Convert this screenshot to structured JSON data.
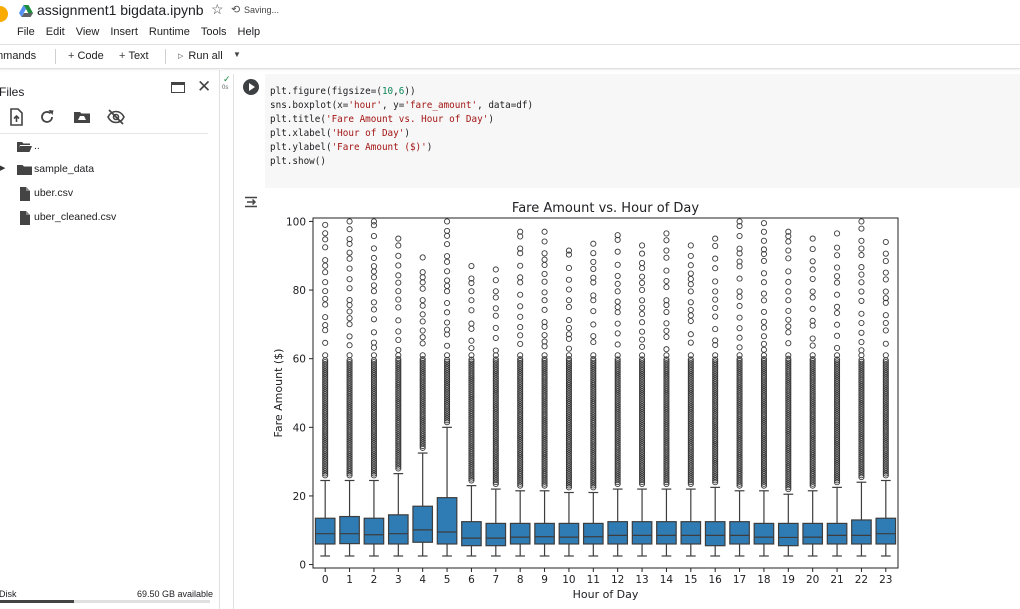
{
  "header": {
    "notebook_title": "assignment1 bigdata.ipynb",
    "saving_text": "Saving...",
    "star_icon": "star-icon",
    "menu": [
      "File",
      "Edit",
      "View",
      "Insert",
      "Runtime",
      "Tools",
      "Help"
    ]
  },
  "toolbar": {
    "commands_label": "mmands",
    "code_label": "Code",
    "text_label": "Text",
    "run_all_label": "Run all"
  },
  "files_panel": {
    "title": "Files",
    "tools": [
      "upload-icon",
      "refresh-icon",
      "mount-drive-icon",
      "hide-icon"
    ],
    "items": [
      {
        "label": "..",
        "kind": "parent-folder"
      },
      {
        "label": "sample_data",
        "kind": "folder"
      },
      {
        "label": "uber.csv",
        "kind": "file"
      },
      {
        "label": "uber_cleaned.csv",
        "kind": "file"
      }
    ],
    "disk_label": "Disk",
    "disk_available": "69.50 GB available",
    "disk_used_fraction": 0.35
  },
  "cell": {
    "status_check": "✓",
    "exec_time": "0s",
    "code": [
      "plt.figure(figsize=(10,6))",
      "sns.boxplot(x='hour', y='fare_amount', data=df)",
      "plt.title('Fare Amount vs. Hour of Day')",
      "plt.xlabel('Hour of Day')",
      "plt.ylabel('Fare Amount ($)')",
      "plt.show()"
    ]
  },
  "colors": {
    "box_fill": "#2f7bb4",
    "code_bg": "#f7f7f7",
    "string_color": "#a31515",
    "number_color": "#098658"
  },
  "chart_data": {
    "type": "boxplot",
    "title": "Fare Amount vs. Hour of Day",
    "xlabel": "Hour of Day",
    "ylabel": "Fare Amount ($)",
    "ylim": [
      -1,
      101
    ],
    "yticks": [
      0,
      20,
      40,
      60,
      80,
      100
    ],
    "categories": [
      "0",
      "1",
      "2",
      "3",
      "4",
      "5",
      "6",
      "7",
      "8",
      "9",
      "10",
      "11",
      "12",
      "13",
      "14",
      "15",
      "16",
      "17",
      "18",
      "19",
      "20",
      "21",
      "22",
      "23"
    ],
    "q1": [
      6.0,
      6.1,
      6.0,
      6.0,
      6.5,
      6.0,
      5.5,
      5.5,
      6.0,
      6.0,
      6.0,
      6.0,
      6.0,
      6.0,
      6.0,
      6.0,
      5.5,
      6.0,
      6.0,
      5.5,
      6.0,
      6.0,
      6.0,
      6.0
    ],
    "median": [
      9.0,
      9.0,
      8.7,
      9.0,
      10.1,
      9.5,
      7.7,
      7.7,
      8.0,
      8.1,
      8.0,
      8.1,
      8.5,
      8.5,
      8.5,
      8.5,
      8.5,
      8.5,
      8.0,
      7.9,
      8.0,
      8.5,
      8.5,
      9.0
    ],
    "q3": [
      13.5,
      14.0,
      13.5,
      14.5,
      17.0,
      19.5,
      12.5,
      12.0,
      12.0,
      12.0,
      12.0,
      12.0,
      12.5,
      12.5,
      12.5,
      12.5,
      12.5,
      12.5,
      12.0,
      12.0,
      12.0,
      12.0,
      13.0,
      13.5
    ],
    "whisker_low": [
      2.5,
      2.5,
      2.5,
      2.5,
      2.5,
      2.5,
      2.5,
      2.5,
      2.5,
      2.5,
      2.5,
      2.5,
      2.5,
      2.5,
      2.5,
      2.5,
      2.5,
      2.5,
      2.5,
      2.5,
      2.5,
      2.5,
      2.5,
      2.5
    ],
    "whisker_high": [
      24.5,
      24.5,
      24.5,
      26.5,
      32.5,
      40.0,
      23.0,
      22.0,
      21.5,
      21.5,
      21.0,
      21.0,
      22.0,
      22.0,
      22.0,
      22.0,
      22.5,
      21.5,
      21.5,
      20.5,
      21.5,
      22.5,
      24.0,
      24.5
    ],
    "outlier_max": [
      99,
      100,
      100,
      95,
      89.5,
      100,
      87,
      86,
      97,
      97,
      91.5,
      93.5,
      96,
      93,
      96.5,
      93,
      95,
      100,
      99.5,
      97,
      95,
      96.5,
      100,
      94
    ]
  }
}
